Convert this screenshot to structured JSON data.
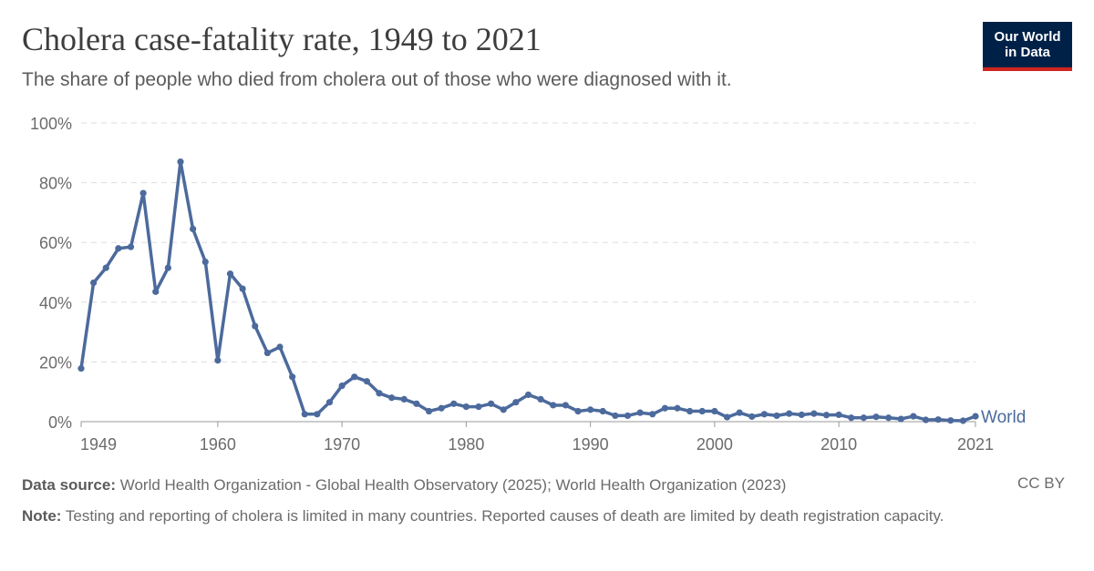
{
  "title": "Cholera case-fatality rate, 1949 to 2021",
  "subtitle": "The share of people who died from cholera out of those who were diagnosed with it.",
  "logo": {
    "line1": "Our World",
    "line2": "in Data"
  },
  "footer": {
    "source_label": "Data source:",
    "source_text": "World Health Organization - Global Health Observatory (2025); World Health Organization (2023)",
    "note_label": "Note:",
    "note_text": "Testing and reporting of cholera is limited in many countries. Reported causes of death are limited by death registration capacity.",
    "license": "CC BY"
  },
  "colors": {
    "series": "#4c6a9c",
    "grid": "#dddddd",
    "axis": "#999999"
  },
  "chart_data": {
    "type": "line",
    "xlim": [
      1949,
      2021
    ],
    "ylim": [
      0,
      100
    ],
    "x_ticks": [
      "1949",
      "1960",
      "1970",
      "1980",
      "1990",
      "2000",
      "2010",
      "2021"
    ],
    "x_tick_values": [
      1949,
      1960,
      1970,
      1980,
      1990,
      2000,
      2010,
      2021
    ],
    "y_ticks": [
      "0%",
      "20%",
      "40%",
      "60%",
      "80%",
      "100%"
    ],
    "y_tick_values": [
      0,
      20,
      40,
      60,
      80,
      100
    ],
    "grid": true,
    "series": [
      {
        "name": "World",
        "x": [
          1949,
          1950,
          1951,
          1952,
          1953,
          1954,
          1955,
          1956,
          1957,
          1958,
          1959,
          1960,
          1961,
          1962,
          1963,
          1964,
          1965,
          1966,
          1967,
          1968,
          1969,
          1970,
          1971,
          1972,
          1973,
          1974,
          1975,
          1976,
          1977,
          1978,
          1979,
          1980,
          1981,
          1982,
          1983,
          1984,
          1985,
          1986,
          1987,
          1988,
          1989,
          1990,
          1991,
          1992,
          1993,
          1994,
          1995,
          1996,
          1997,
          1998,
          1999,
          2000,
          2001,
          2002,
          2003,
          2004,
          2005,
          2006,
          2007,
          2008,
          2009,
          2010,
          2011,
          2012,
          2013,
          2014,
          2015,
          2016,
          2017,
          2018,
          2019,
          2020,
          2021
        ],
        "y": [
          17.8,
          46.5,
          51.5,
          58,
          58.5,
          76.5,
          43.5,
          51.5,
          87,
          64.5,
          53.5,
          20.5,
          49.5,
          44.5,
          32,
          23,
          25,
          15,
          2.5,
          2.5,
          6.5,
          12,
          15,
          13.5,
          9.5,
          8,
          7.5,
          6,
          3.5,
          4.5,
          6,
          5,
          5,
          6,
          4,
          6.5,
          9,
          7.5,
          5.5,
          5.5,
          3.5,
          4,
          3.5,
          2,
          2,
          3,
          2.5,
          4.5,
          4.5,
          3.5,
          3.5,
          3.5,
          1.5,
          3,
          1.7,
          2.5,
          2,
          2.7,
          2.3,
          2.7,
          2.2,
          2.3,
          1.3,
          1.3,
          1.6,
          1.3,
          0.9,
          1.8,
          0.6,
          0.7,
          0.4,
          0.3,
          1.8
        ]
      }
    ]
  }
}
